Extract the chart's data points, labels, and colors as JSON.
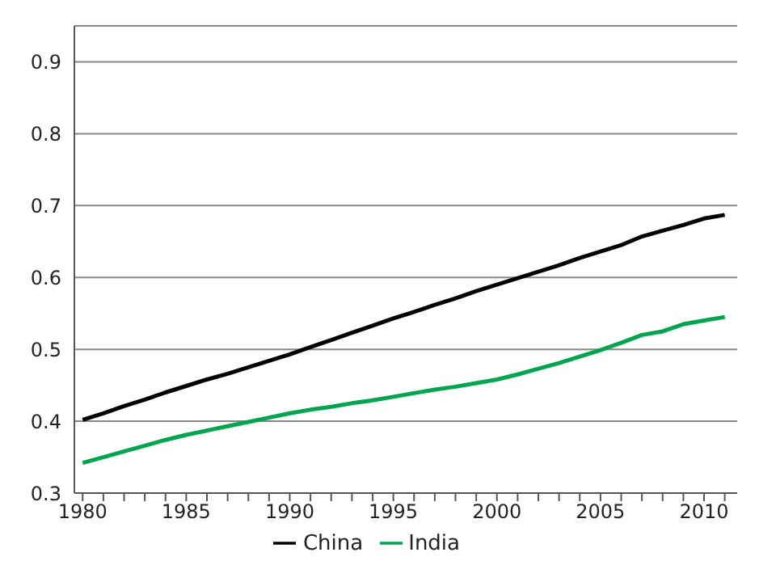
{
  "chart_data": {
    "type": "line",
    "x": [
      1980,
      1981,
      1982,
      1983,
      1984,
      1985,
      1986,
      1987,
      1988,
      1989,
      1990,
      1991,
      1992,
      1993,
      1994,
      1995,
      1996,
      1997,
      1998,
      1999,
      2000,
      2001,
      2002,
      2003,
      2004,
      2005,
      2006,
      2007,
      2008,
      2009,
      2010,
      2011
    ],
    "series": [
      {
        "name": "China",
        "color": "#000000",
        "values": [
          0.402,
          0.411,
          0.421,
          0.43,
          0.44,
          0.449,
          0.458,
          0.466,
          0.475,
          0.484,
          0.493,
          0.503,
          0.513,
          0.523,
          0.533,
          0.543,
          0.552,
          0.562,
          0.571,
          0.581,
          0.59,
          0.599,
          0.608,
          0.617,
          0.627,
          0.636,
          0.645,
          0.657,
          0.665,
          0.673,
          0.682,
          0.687
        ]
      },
      {
        "name": "India",
        "color": "#00a550",
        "values": [
          0.342,
          0.35,
          0.358,
          0.366,
          0.374,
          0.381,
          0.387,
          0.393,
          0.399,
          0.405,
          0.411,
          0.416,
          0.42,
          0.425,
          0.429,
          0.434,
          0.439,
          0.444,
          0.448,
          0.453,
          0.458,
          0.465,
          0.473,
          0.481,
          0.49,
          0.499,
          0.509,
          0.52,
          0.525,
          0.535,
          0.54,
          0.545
        ]
      }
    ],
    "xlim": [
      1979.6,
      2011.6
    ],
    "xticks": [
      1980,
      {
        "value": 1981,
        "label": null
      },
      {
        "value": 1982,
        "label": null
      },
      {
        "value": 1983,
        "label": null
      },
      {
        "value": 1984,
        "label": null
      },
      1985,
      {
        "value": 1986,
        "label": null
      },
      {
        "value": 1987,
        "label": null
      },
      {
        "value": 1988,
        "label": null
      },
      {
        "value": 1989,
        "label": null
      },
      1990,
      {
        "value": 1991,
        "label": null
      },
      {
        "value": 1992,
        "label": null
      },
      {
        "value": 1993,
        "label": null
      },
      {
        "value": 1994,
        "label": null
      },
      1995,
      {
        "value": 1996,
        "label": null
      },
      {
        "value": 1997,
        "label": null
      },
      {
        "value": 1998,
        "label": null
      },
      {
        "value": 1999,
        "label": null
      },
      2000,
      {
        "value": 2001,
        "label": null
      },
      {
        "value": 2002,
        "label": null
      },
      {
        "value": 2003,
        "label": null
      },
      {
        "value": 2004,
        "label": null
      },
      2005,
      {
        "value": 2006,
        "label": null
      },
      {
        "value": 2007,
        "label": null
      },
      {
        "value": 2008,
        "label": null
      },
      {
        "value": 2009,
        "label": null
      },
      2010,
      {
        "value": 2011,
        "label": null
      }
    ],
    "ylim": [
      0.3,
      0.95
    ],
    "yticks": [
      0.3,
      0.4,
      0.5,
      0.6,
      0.7,
      0.8,
      0.9
    ],
    "grid": "y",
    "legend": "bottom",
    "marker": "none",
    "line_style": "solid"
  }
}
